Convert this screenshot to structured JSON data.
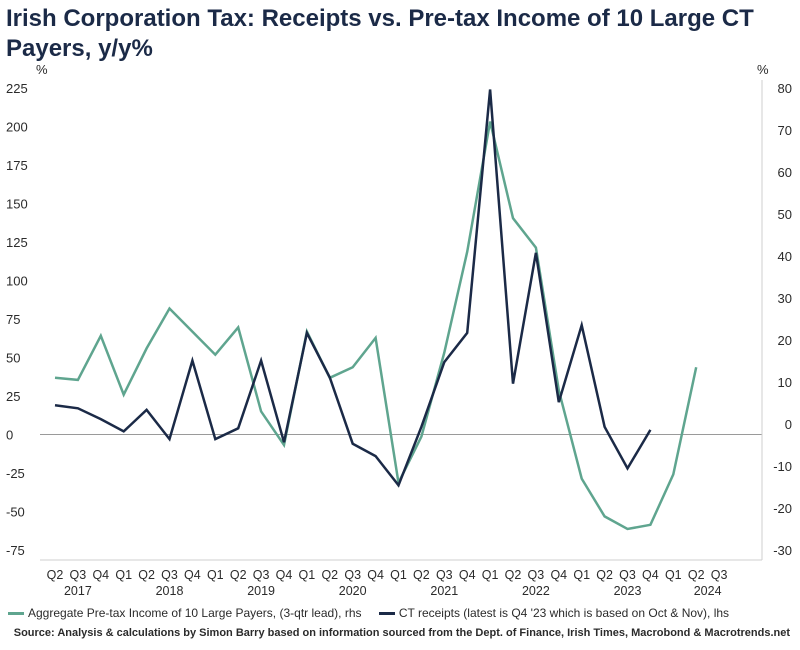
{
  "chart_data": {
    "type": "line",
    "title": "Irish Corporation Tax: Receipts vs. Pre-tax Income of 10 Large CT Payers, y/y%",
    "left_axis": {
      "unit": "%",
      "min": -75,
      "max": 225,
      "ticks": [
        225,
        200,
        175,
        150,
        125,
        100,
        75,
        50,
        25,
        0,
        -25,
        -50,
        -75
      ]
    },
    "right_axis": {
      "unit": "%",
      "min": -30,
      "max": 80,
      "ticks": [
        80,
        70,
        60,
        50,
        40,
        30,
        20,
        10,
        0,
        -10,
        -20,
        -30
      ]
    },
    "quarters": [
      "Q2",
      "Q3",
      "Q4",
      "Q1",
      "Q2",
      "Q3",
      "Q4",
      "Q1",
      "Q2",
      "Q3",
      "Q4",
      "Q1",
      "Q2",
      "Q3",
      "Q4",
      "Q1",
      "Q2",
      "Q3",
      "Q4",
      "Q1",
      "Q2",
      "Q3",
      "Q4",
      "Q1",
      "Q2",
      "Q3",
      "Q4",
      "Q1",
      "Q2",
      "Q3"
    ],
    "years": [
      {
        "label": "2017",
        "at": 1
      },
      {
        "label": "2018",
        "at": 5
      },
      {
        "label": "2019",
        "at": 9
      },
      {
        "label": "2020",
        "at": 13
      },
      {
        "label": "2021",
        "at": 17
      },
      {
        "label": "2022",
        "at": 21
      },
      {
        "label": "2023",
        "at": 25
      },
      {
        "label": "2024",
        "at": 28.5
      }
    ],
    "series": [
      {
        "name": "Aggregate Pre-tax Income of 10 Large Payers, (3-qtr lead), rhs",
        "axis": "right",
        "color": "#5fa58f",
        "values": [
          11,
          10.5,
          21,
          7,
          18,
          27.5,
          22,
          16.5,
          23,
          3,
          -5,
          22,
          11,
          13.5,
          20.5,
          -14,
          -3,
          17,
          41,
          72,
          49,
          42,
          8,
          -13,
          -22,
          -25,
          -24,
          -12,
          13.5,
          null
        ]
      },
      {
        "name": "CT receipts (latest is Q4 '23 which is based on Oct & Nov), lhs",
        "axis": "left",
        "color": "#1b2a47",
        "values": [
          19,
          17,
          10,
          2,
          16,
          -3,
          48,
          -3,
          4,
          48,
          -5,
          66,
          37,
          -6,
          -14,
          -33,
          5,
          47,
          66,
          224,
          33,
          118,
          21,
          71,
          5,
          -22,
          3,
          null,
          null,
          null
        ]
      }
    ]
  },
  "legend": [
    {
      "label": "Aggregate Pre-tax Income of 10 Large Payers, (3-qtr lead), rhs",
      "color": "#5fa58f"
    },
    {
      "label": "CT receipts (latest is Q4 '23 which is based on Oct & Nov), lhs",
      "color": "#1b2a47"
    }
  ],
  "source": "Source: Analysis & calculations by Simon Barry based on information sourced from the Dept. of Finance, Irish Times, Macrobond & Macrotrends.net"
}
